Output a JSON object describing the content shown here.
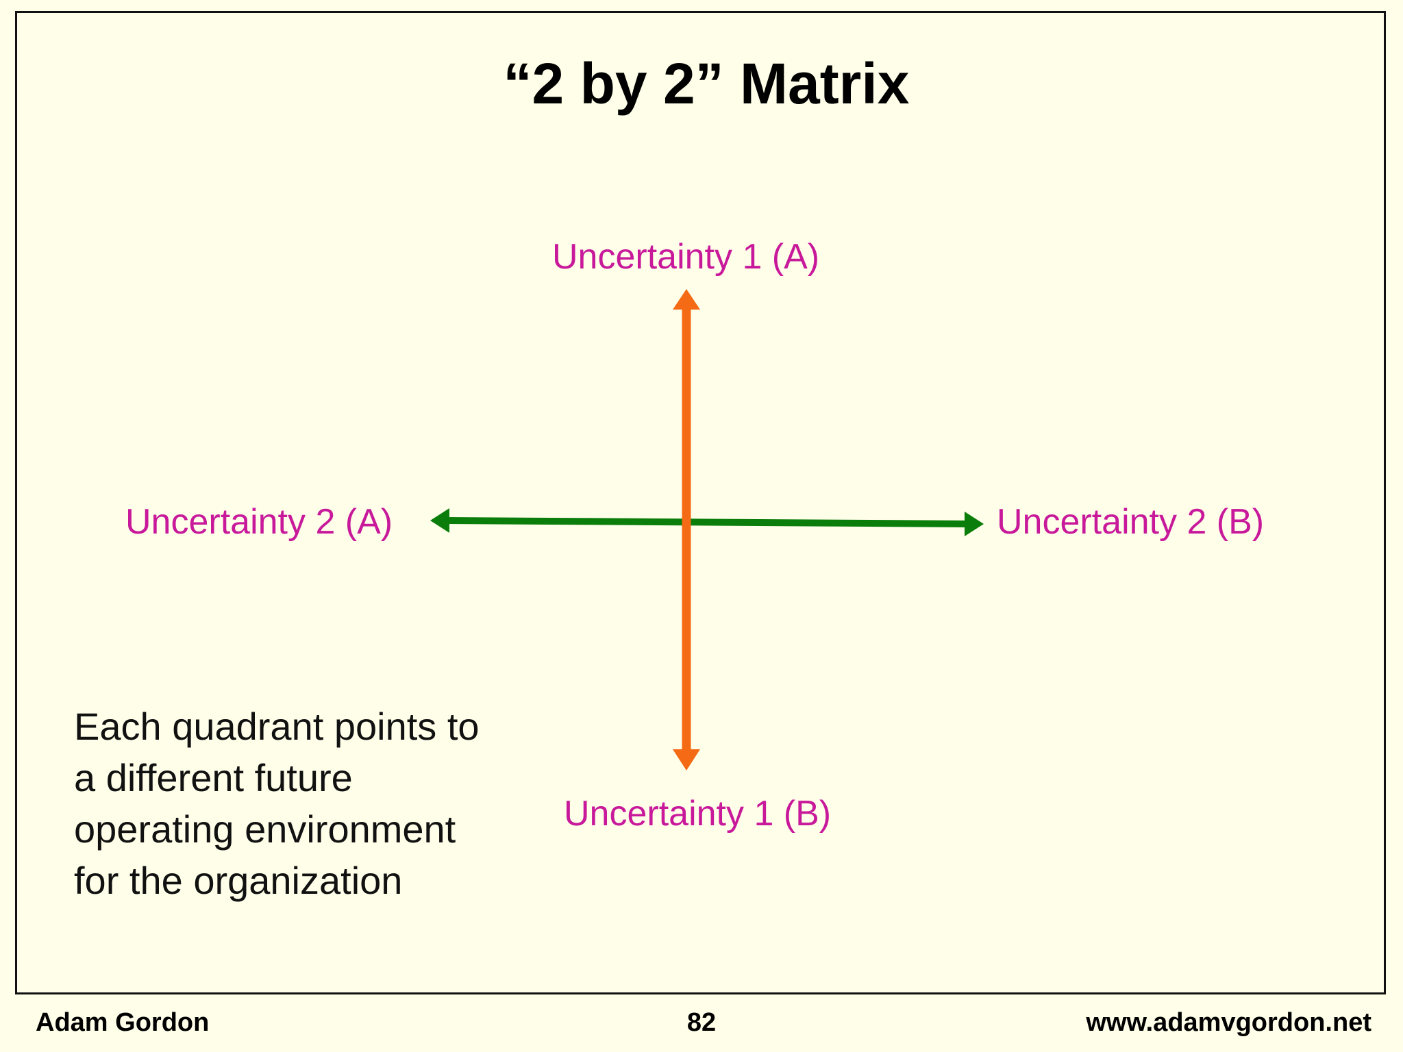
{
  "title": "“2 by 2” Matrix",
  "axes": {
    "vertical_top_label": "Uncertainty 1 (A)",
    "vertical_bottom_label": "Uncertainty 1 (B)",
    "horizontal_left_label": "Uncertainty 2 (A)",
    "horizontal_right_label": "Uncertainty 2 (B)",
    "vertical_color": "#f56a14",
    "horizontal_color": "#0a7d0a",
    "label_color": "#c8199b"
  },
  "note": "Each quadrant points to a different future operating environment for the organization",
  "footer": {
    "author": "Adam Gordon",
    "page_number": "82",
    "website": "www.adamvgordon.net"
  },
  "background_color": "#fefee9"
}
